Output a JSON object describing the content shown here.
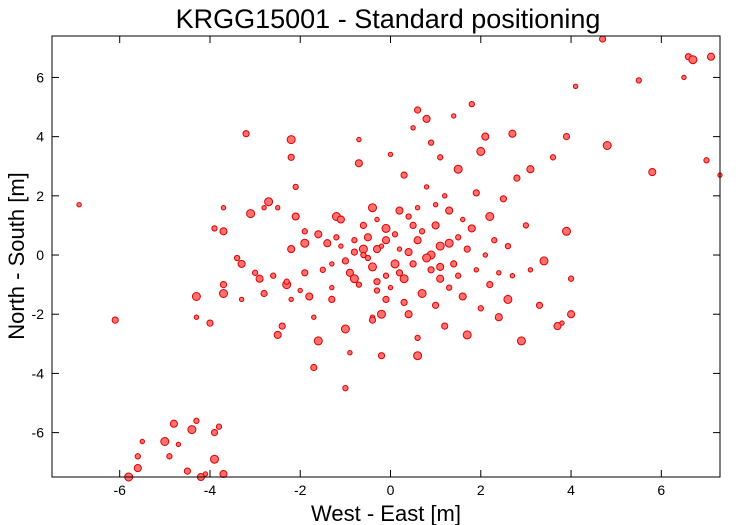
{
  "chart_data": {
    "type": "scatter",
    "title": "KRGG15001 - Standard positioning",
    "xlabel": "West - East [m]",
    "ylabel": "North - South [m]",
    "xlim": [
      -7.5,
      7.3
    ],
    "ylim": [
      -7.5,
      7.4
    ],
    "xticks": [
      -6,
      -4,
      -2,
      0,
      2,
      4,
      6
    ],
    "yticks": [
      -6,
      -4,
      -2,
      0,
      2,
      4,
      6
    ],
    "grid": false,
    "legend": "none",
    "marker_fill": "#ff7070",
    "marker_edge": "#dd0000",
    "points": [
      [
        -6.9,
        1.7
      ],
      [
        -6.1,
        -2.2
      ],
      [
        -5.8,
        -7.5
      ],
      [
        -5.6,
        -6.8
      ],
      [
        -5.6,
        -7.2
      ],
      [
        -5.5,
        -6.3
      ],
      [
        -5.2,
        -7.6
      ],
      [
        -5.0,
        -6.3
      ],
      [
        -4.9,
        -6.8
      ],
      [
        -4.8,
        -5.7
      ],
      [
        -4.7,
        -6.4
      ],
      [
        -4.5,
        -7.3
      ],
      [
        -4.4,
        -5.9
      ],
      [
        -4.3,
        -5.6
      ],
      [
        -4.2,
        -7.5
      ],
      [
        -4.1,
        -7.4
      ],
      [
        -3.9,
        -6.0
      ],
      [
        -3.9,
        -6.9
      ],
      [
        -3.8,
        -5.8
      ],
      [
        -3.7,
        -7.4
      ],
      [
        -4.3,
        -2.1
      ],
      [
        -4.0,
        -2.3
      ],
      [
        -4.3,
        -1.4
      ],
      [
        -3.9,
        0.9
      ],
      [
        -3.7,
        0.8
      ],
      [
        -3.7,
        1.6
      ],
      [
        -3.7,
        -1.0
      ],
      [
        -3.7,
        -1.3
      ],
      [
        -3.4,
        -0.1
      ],
      [
        -3.3,
        -0.3
      ],
      [
        -3.3,
        -1.5
      ],
      [
        -3.2,
        4.1
      ],
      [
        -3.1,
        1.4
      ],
      [
        -3.0,
        -0.6
      ],
      [
        -2.9,
        -0.8
      ],
      [
        -2.8,
        1.6
      ],
      [
        -2.8,
        -1.3
      ],
      [
        -2.7,
        1.8
      ],
      [
        -2.6,
        -0.7
      ],
      [
        -2.5,
        -2.7
      ],
      [
        -2.5,
        1.6
      ],
      [
        -2.4,
        -2.4
      ],
      [
        -2.3,
        -1.0
      ],
      [
        -2.3,
        -0.9
      ],
      [
        -2.2,
        0.2
      ],
      [
        -2.2,
        -1.5
      ],
      [
        -2.2,
        3.3
      ],
      [
        -2.2,
        3.9
      ],
      [
        -2.1,
        2.3
      ],
      [
        -2.1,
        1.3
      ],
      [
        -2.0,
        -1.2
      ],
      [
        -1.9,
        -0.6
      ],
      [
        -1.9,
        0.4
      ],
      [
        -1.9,
        0.8
      ],
      [
        -1.8,
        -1.4
      ],
      [
        -1.7,
        -2.1
      ],
      [
        -1.7,
        -3.8
      ],
      [
        -1.6,
        -2.9
      ],
      [
        -1.5,
        -0.5
      ],
      [
        -1.4,
        0.4
      ],
      [
        -1.3,
        -1.1
      ],
      [
        -1.3,
        -1.5
      ],
      [
        -1.2,
        1.3
      ],
      [
        -1.2,
        0.6
      ],
      [
        -1.1,
        1.2
      ],
      [
        -1.1,
        0.3
      ],
      [
        -1.0,
        -0.2
      ],
      [
        -1.0,
        -2.5
      ],
      [
        -1.0,
        -4.5
      ],
      [
        -0.9,
        -0.6
      ],
      [
        -0.9,
        -3.3
      ],
      [
        -0.8,
        0.1
      ],
      [
        -0.8,
        -0.8
      ],
      [
        -0.7,
        -1.0
      ],
      [
        -0.7,
        3.1
      ],
      [
        -0.7,
        3.9
      ],
      [
        -0.6,
        1.0
      ],
      [
        -0.6,
        0.2
      ],
      [
        -0.5,
        -0.1
      ],
      [
        -0.5,
        0.6
      ],
      [
        -0.4,
        -2.1
      ],
      [
        -0.4,
        -2.2
      ],
      [
        -0.4,
        -0.4
      ],
      [
        -0.3,
        -1.2
      ],
      [
        -0.3,
        0.2
      ],
      [
        -0.3,
        1.2
      ],
      [
        -0.2,
        -3.4
      ],
      [
        -0.2,
        -2.0
      ],
      [
        -0.1,
        -0.7
      ],
      [
        -0.1,
        0.5
      ],
      [
        0.0,
        3.4
      ],
      [
        -0.1,
        -1.5
      ],
      [
        -0.1,
        0.9
      ],
      [
        0.1,
        0.7
      ],
      [
        0.2,
        1.5
      ],
      [
        0.2,
        0.2
      ],
      [
        0.3,
        2.7
      ],
      [
        0.3,
        -0.8
      ],
      [
        0.4,
        1.3
      ],
      [
        0.4,
        -2.0
      ],
      [
        0.5,
        4.3
      ],
      [
        0.5,
        -0.3
      ],
      [
        0.6,
        -3.4
      ],
      [
        0.6,
        -2.8
      ],
      [
        0.6,
        0.5
      ],
      [
        0.6,
        1.6
      ],
      [
        0.6,
        4.9
      ],
      [
        0.7,
        -1.3
      ],
      [
        0.7,
        0.8
      ],
      [
        0.8,
        4.6
      ],
      [
        0.8,
        2.3
      ],
      [
        0.9,
        -0.5
      ],
      [
        0.9,
        0.0
      ],
      [
        0.9,
        3.8
      ],
      [
        1.0,
        1.0
      ],
      [
        1.0,
        1.7
      ],
      [
        1.0,
        -1.7
      ],
      [
        1.1,
        0.3
      ],
      [
        1.1,
        3.3
      ],
      [
        1.1,
        -0.8
      ],
      [
        1.2,
        2.0
      ],
      [
        1.2,
        -2.4
      ],
      [
        1.3,
        0.4
      ],
      [
        1.3,
        -1.1
      ],
      [
        1.3,
        1.5
      ],
      [
        1.4,
        4.7
      ],
      [
        1.4,
        -0.3
      ],
      [
        1.5,
        2.9
      ],
      [
        1.5,
        0.6
      ],
      [
        1.6,
        -1.4
      ],
      [
        1.6,
        1.2
      ],
      [
        1.7,
        0.2
      ],
      [
        1.7,
        -2.7
      ],
      [
        1.8,
        5.1
      ],
      [
        1.8,
        0.9
      ],
      [
        1.9,
        -0.5
      ],
      [
        1.9,
        2.1
      ],
      [
        2.0,
        3.5
      ],
      [
        2.0,
        -1.8
      ],
      [
        2.1,
        4.0
      ],
      [
        2.1,
        0.0
      ],
      [
        2.2,
        -1.0
      ],
      [
        2.2,
        1.3
      ],
      [
        2.3,
        0.5
      ],
      [
        2.4,
        -2.1
      ],
      [
        2.4,
        -0.6
      ],
      [
        2.5,
        1.9
      ],
      [
        2.6,
        -1.5
      ],
      [
        2.6,
        0.3
      ],
      [
        2.7,
        4.1
      ],
      [
        2.7,
        -0.7
      ],
      [
        2.8,
        2.6
      ],
      [
        2.9,
        -2.9
      ],
      [
        3.0,
        1.0
      ],
      [
        3.1,
        2.9
      ],
      [
        3.1,
        -0.5
      ],
      [
        3.3,
        -1.7
      ],
      [
        3.4,
        -0.2
      ],
      [
        3.6,
        3.3
      ],
      [
        3.7,
        -2.4
      ],
      [
        3.8,
        -2.3
      ],
      [
        3.9,
        4.0
      ],
      [
        3.9,
        0.8
      ],
      [
        4.0,
        -0.8
      ],
      [
        4.0,
        -2.0
      ],
      [
        4.1,
        5.7
      ],
      [
        4.7,
        7.3
      ],
      [
        4.8,
        3.7
      ],
      [
        5.5,
        5.9
      ],
      [
        5.8,
        2.8
      ],
      [
        6.5,
        6.0
      ],
      [
        6.6,
        6.7
      ],
      [
        6.7,
        6.6
      ],
      [
        7.0,
        3.2
      ],
      [
        7.1,
        6.7
      ],
      [
        7.3,
        2.7
      ],
      [
        -0.3,
        -0.9
      ],
      [
        0.1,
        -0.3
      ],
      [
        -0.6,
        0.0
      ],
      [
        0.4,
        0.1
      ],
      [
        -0.2,
        0.3
      ],
      [
        0.2,
        -0.6
      ],
      [
        0.8,
        -0.1
      ],
      [
        -0.8,
        0.5
      ],
      [
        1.1,
        -0.4
      ],
      [
        -1.3,
        -0.3
      ],
      [
        0.5,
        1.0
      ],
      [
        -0.4,
        1.6
      ],
      [
        1.5,
        -0.7
      ],
      [
        -1.6,
        0.7
      ],
      [
        0.0,
        -1.1
      ],
      [
        0.3,
        -1.6
      ]
    ]
  }
}
